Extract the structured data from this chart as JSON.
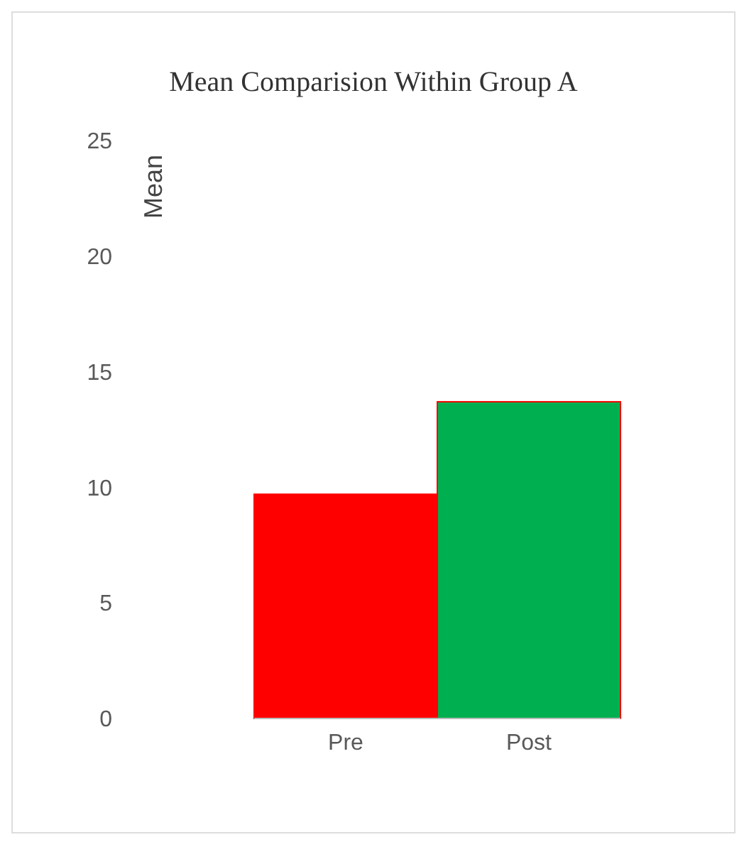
{
  "chart_data": {
    "type": "bar",
    "title": "Mean Comparision Within Group A",
    "ylabel": "Mean",
    "categories": [
      "Pre",
      "Post"
    ],
    "values": [
      9.7,
      13.7
    ],
    "colors": [
      "#ff0000",
      "#00b050"
    ],
    "ylim": [
      0,
      25
    ],
    "yticks": [
      0,
      5,
      10,
      15,
      20,
      25
    ],
    "grid": false,
    "legend": false
  }
}
